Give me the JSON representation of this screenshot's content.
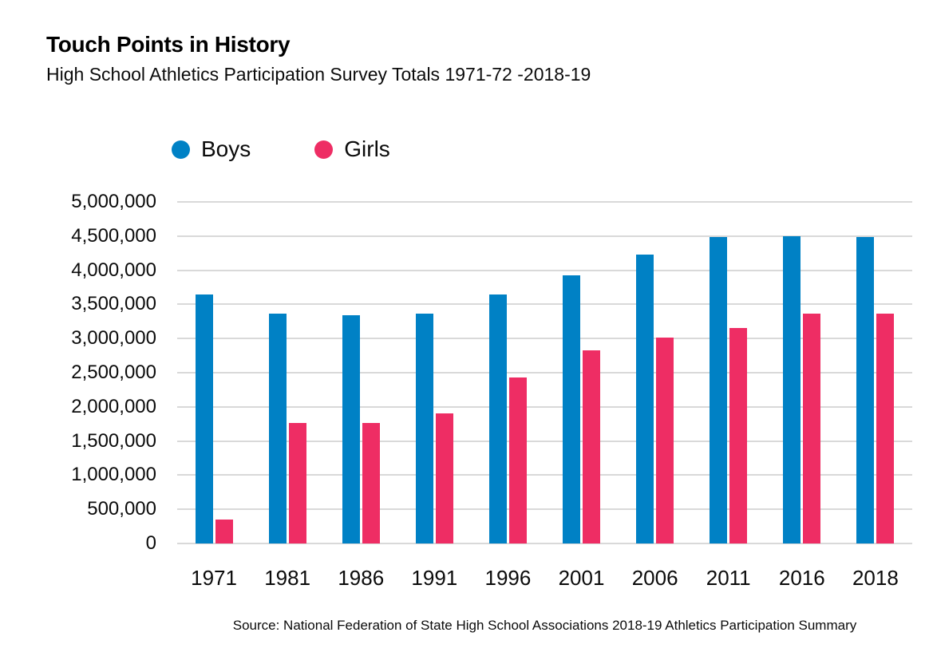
{
  "header": {
    "title": "Touch Points in History",
    "subtitle": "High School Athletics Participation Survey Totals 1971-72 -2018-19"
  },
  "source": "Source: National Federation of State High School Associations 2018-19 Athletics Participation Summary",
  "colors": {
    "boys": "#0081C5",
    "girls": "#EE2D64",
    "gridline": "#D9D9D9",
    "text": "#0B0B0B",
    "background": "#FFFFFF"
  },
  "chart_data": {
    "type": "bar",
    "title": "Touch Points in History",
    "subtitle": "High School Athletics Participation Survey Totals 1971-72 -2018-19",
    "categories": [
      "1971",
      "1981",
      "1986",
      "1991",
      "1996",
      "2001",
      "2006",
      "2011",
      "2016",
      "2018"
    ],
    "series": [
      {
        "name": "Boys",
        "color": "#0081C5",
        "values": [
          3650000,
          3370000,
          3340000,
          3370000,
          3650000,
          3930000,
          4230000,
          4490000,
          4500000,
          4490000
        ]
      },
      {
        "name": "Girls",
        "color": "#EE2D64",
        "values": [
          350000,
          1760000,
          1760000,
          1910000,
          2430000,
          2830000,
          3010000,
          3160000,
          3370000,
          3370000
        ]
      }
    ],
    "xlabel": "",
    "ylabel": "",
    "ylim": [
      0,
      5000000
    ],
    "yticks": [
      0,
      500000,
      1000000,
      1500000,
      2000000,
      2500000,
      3000000,
      3500000,
      4000000,
      4500000,
      5000000
    ],
    "ytick_labels": [
      "0",
      "500,000",
      "1,000,000",
      "1,500,000",
      "2,000,000",
      "2,500,000",
      "3,000,000",
      "3,500,000",
      "4,000,000",
      "4,500,000",
      "5,000,000"
    ],
    "grid": true,
    "legend_position": "top-left"
  }
}
